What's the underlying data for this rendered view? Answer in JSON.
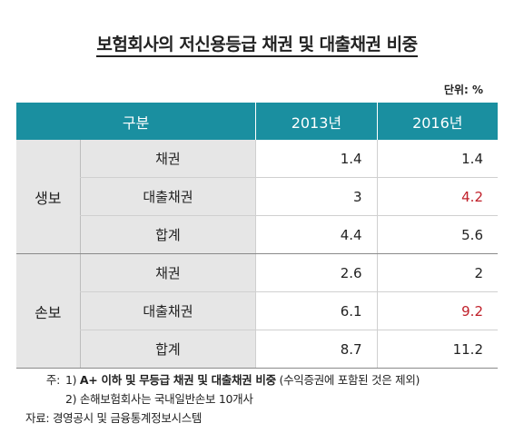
{
  "title": "보험회사의 저신용등급 채권 및 대출채권 비중",
  "unit": "단위: %",
  "table": {
    "headers": [
      "구분",
      "2013년",
      "2016년"
    ],
    "groups": [
      {
        "name": "생보",
        "rows": [
          {
            "label": "채권",
            "v2013": "1.4",
            "v2016": "1.4"
          },
          {
            "label": "대출채권",
            "v2013": "3",
            "v2016": "4.2"
          },
          {
            "label": "합계",
            "v2013": "4.4",
            "v2016": "5.6"
          }
        ]
      },
      {
        "name": "손보",
        "rows": [
          {
            "label": "채권",
            "v2013": "2.6",
            "v2016": "2"
          },
          {
            "label": "대출채권",
            "v2013": "6.1",
            "v2016": "9.2"
          },
          {
            "label": "합계",
            "v2013": "8.7",
            "v2016": "11.2"
          }
        ]
      }
    ],
    "highlight_color": "#c0202a",
    "header_color": "#1a8fa0"
  },
  "notes": {
    "label": "주:",
    "note1_prefix": "1)",
    "note1_bold": "A+ 이하 및 무등급 채권 및 대출채권 비중",
    "note1_rest": " (수익증권에 포함된 것은 제외)",
    "note2": "2) 손해보험회사는 국내일반손보 10개사"
  },
  "source": "자료: 경영공시 및 금융통계정보시스템"
}
